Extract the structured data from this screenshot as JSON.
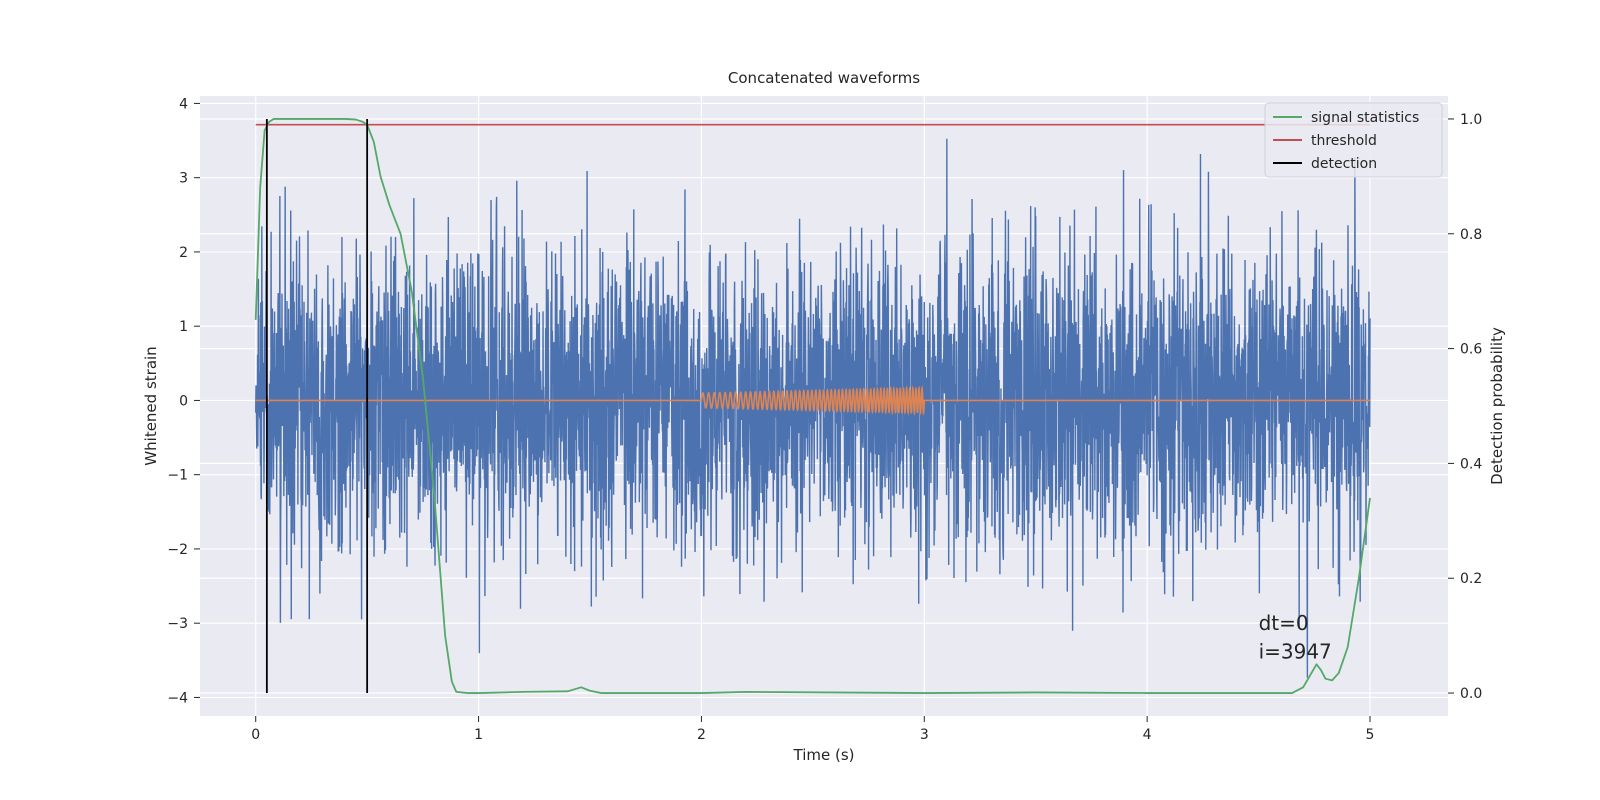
{
  "chart_data": {
    "type": "line",
    "title": "Concatenated waveforms",
    "xlabel": "Time (s)",
    "ylabel": "Whitened strain",
    "y2label": "Detection probability",
    "xlim": [
      -0.25,
      5.35
    ],
    "ylim": [
      -4.25,
      4.1
    ],
    "y2lim": [
      -0.04,
      1.04
    ],
    "xticks": [
      0,
      1,
      2,
      3,
      4,
      5
    ],
    "yticks": [
      -4,
      -3,
      -2,
      -1,
      0,
      1,
      2,
      3,
      4
    ],
    "y2ticks": [
      0.0,
      0.2,
      0.4,
      0.6,
      0.8,
      1.0
    ],
    "xtick_labels": [
      "0",
      "1",
      "2",
      "3",
      "4",
      "5"
    ],
    "ytick_labels": [
      "−4",
      "−3",
      "−2",
      "−1",
      "0",
      "1",
      "2",
      "3",
      "4"
    ],
    "y2tick_labels": [
      "0.0",
      "0.2",
      "0.4",
      "0.6",
      "0.8",
      "1.0"
    ],
    "grid": true,
    "legend_position": "top-right",
    "legend": [
      "signal statistics",
      "threshold",
      "detection"
    ],
    "annotations": [
      "dt=0",
      "i=3947"
    ],
    "colors": {
      "background": "#eaeaf2",
      "grid": "#ffffff",
      "strain": "#4c72b0",
      "template": "#dd8452",
      "statistics": "#55a868",
      "threshold": "#c44e52",
      "detection": "#000000"
    },
    "series": [
      {
        "name": "",
        "axis": "left",
        "kind": "noise",
        "x_range": [
          0,
          5
        ],
        "typical_amplitude": 1.6,
        "peak_positive": 3.55,
        "peak_negative": -3.85
      },
      {
        "name": "",
        "axis": "left",
        "kind": "chirp",
        "x_range": [
          0,
          5
        ],
        "chirp_window": [
          2.0,
          3.0
        ],
        "amplitude_start": 0.1,
        "amplitude_end": 0.17
      },
      {
        "name": "signal statistics",
        "axis": "right",
        "x": [
          0,
          0.02,
          0.04,
          0.06,
          0.08,
          0.1,
          0.2,
          0.3,
          0.4,
          0.45,
          0.48,
          0.5,
          0.53,
          0.56,
          0.6,
          0.65,
          0.7,
          0.75,
          0.8,
          0.85,
          0.88,
          0.9,
          0.95,
          1.0,
          1.2,
          1.4,
          1.46,
          1.5,
          1.55,
          2.0,
          2.2,
          3.0,
          3.5,
          4.0,
          4.5,
          4.65,
          4.7,
          4.73,
          4.76,
          4.78,
          4.8,
          4.83,
          4.86,
          4.9,
          4.95,
          5.0
        ],
        "values": [
          0.65,
          0.88,
          0.98,
          0.995,
          1.0,
          1.0,
          1.0,
          1.0,
          1.0,
          0.999,
          0.995,
          0.99,
          0.96,
          0.9,
          0.85,
          0.8,
          0.7,
          0.55,
          0.35,
          0.1,
          0.02,
          0.002,
          0.0,
          0.0,
          0.002,
          0.003,
          0.01,
          0.004,
          0.0,
          0.0,
          0.002,
          0.0,
          0.001,
          0.0,
          0.0,
          0.0,
          0.01,
          0.03,
          0.05,
          0.04,
          0.025,
          0.022,
          0.035,
          0.08,
          0.2,
          0.34
        ]
      },
      {
        "name": "threshold",
        "axis": "right",
        "x": [
          0,
          5
        ],
        "values": [
          0.99,
          0.99
        ]
      },
      {
        "name": "detection",
        "axis": "right",
        "segments": [
          {
            "x": 0.05,
            "from": 0.0,
            "to": 1.0
          },
          {
            "x": 0.5,
            "from": 0.0,
            "to": 1.0
          }
        ]
      }
    ]
  }
}
